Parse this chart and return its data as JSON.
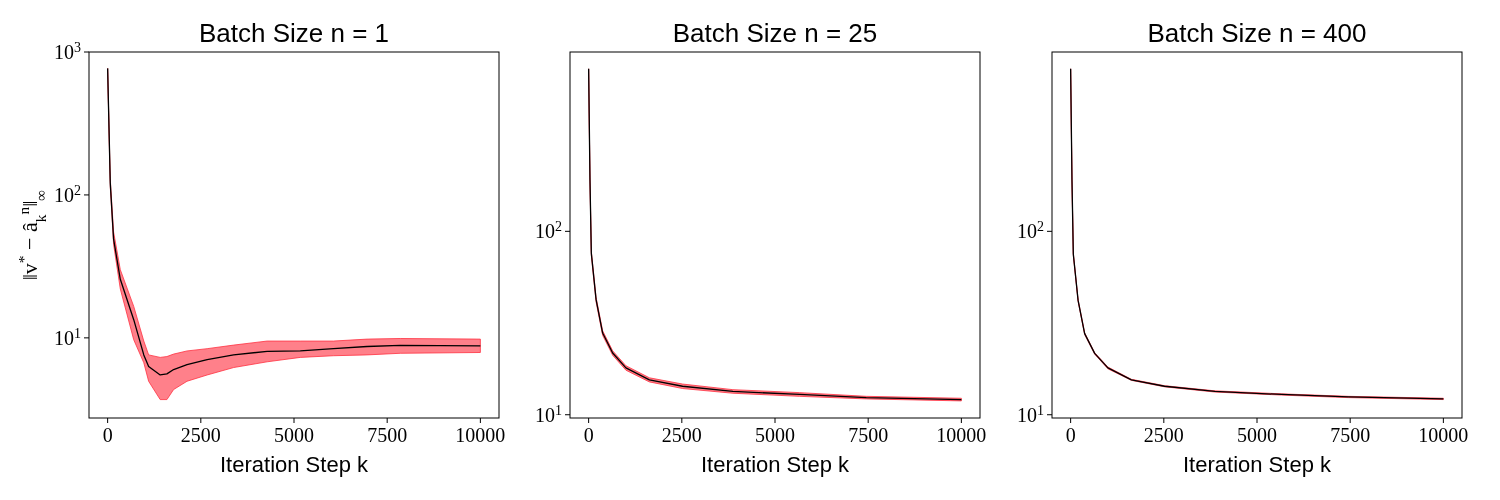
{
  "chart_data": [
    {
      "type": "line",
      "title": "Batch Size n = 1",
      "xlabel": "Iteration Step k",
      "ylabel": "‖v$^{*}$ − â$_{k}$$^{n}$‖$_{∞}$",
      "log": "y",
      "x": [
        0,
        70,
        160,
        340,
        700,
        970,
        1100,
        1410,
        1590,
        1770,
        2130,
        2670,
        3380,
        4280,
        5170,
        6060,
        6960,
        7850,
        10000
      ],
      "series": [
        {
          "color": "#000000",
          "values": [
            768,
            122,
            49,
            25.7,
            13.4,
            7.6,
            6.3,
            5.5,
            5.6,
            6.0,
            6.5,
            7.05,
            7.6,
            8.05,
            8.1,
            8.4,
            8.7,
            8.85,
            8.8
          ],
          "lower": [
            768,
            115,
            45,
            22,
            9.7,
            6.7,
            4.97,
            3.7,
            3.7,
            4.35,
            4.97,
            5.5,
            6.2,
            6.8,
            7.3,
            7.5,
            7.6,
            7.8,
            7.9
          ],
          "upper": [
            768,
            130,
            55,
            30,
            16.6,
            9.5,
            7.6,
            7.3,
            7.4,
            7.7,
            8.1,
            8.4,
            8.9,
            9.5,
            9.5,
            9.5,
            9.8,
            9.9,
            9.8
          ]
        }
      ],
      "xlim": [
        -500,
        10500
      ],
      "xticks": [
        0,
        2500,
        5000,
        7500,
        10000
      ],
      "ylim": [
        2.75,
        1000
      ],
      "yticks": [
        {
          "value": 10,
          "label": "10$^{1}$"
        },
        {
          "value": 100,
          "label": "10$^{2}$"
        },
        {
          "value": 1000,
          "label": "10$^{3}$"
        }
      ]
    },
    {
      "type": "line",
      "title": "Batch Size n = 25",
      "xlabel": "Iteration Step k",
      "log": "y",
      "x": [
        0,
        36,
        72,
        200,
        376,
        645,
        1000,
        1630,
        2520,
        3870,
        5660,
        7450,
        10000
      ],
      "series": [
        {
          "color": "#000000",
          "values": [
            769,
            191,
            76,
            42.4,
            27.9,
            21.7,
            18,
            15.5,
            14.3,
            13.4,
            12.9,
            12.4,
            12.1
          ],
          "lower": [
            769,
            186,
            74,
            41.2,
            27.1,
            21.1,
            17.5,
            15.1,
            13.9,
            13.1,
            12.6,
            12.2,
            11.9
          ],
          "upper": [
            769,
            196,
            78,
            43.6,
            28.7,
            22.3,
            18.5,
            15.9,
            14.7,
            13.7,
            13.2,
            12.6,
            12.3
          ]
        }
      ],
      "xlim": [
        -500,
        10500
      ],
      "xticks": [
        0,
        2500,
        5000,
        7500,
        10000
      ],
      "ylim": [
        9.6,
        950
      ],
      "yticks": [
        {
          "value": 10,
          "label": "10$^{1}$"
        },
        {
          "value": 100,
          "label": "10$^{2}$"
        }
      ]
    },
    {
      "type": "line",
      "title": "Batch Size n = 400",
      "xlabel": "Iteration Step k",
      "log": "y",
      "x": [
        0,
        36,
        72,
        200,
        376,
        645,
        1000,
        1630,
        2520,
        3870,
        5660,
        7450,
        10000
      ],
      "series": [
        {
          "color": "#000000",
          "values": [
            769,
            190,
            75,
            42,
            27.7,
            21.6,
            18,
            15.5,
            14.3,
            13.4,
            12.9,
            12.5,
            12.2
          ],
          "lower": [
            769,
            188,
            74,
            41.6,
            27.4,
            21.4,
            17.8,
            15.4,
            14.2,
            13.3,
            12.8,
            12.4,
            12.1
          ],
          "upper": [
            769,
            192,
            76,
            42.4,
            28,
            21.8,
            18.2,
            15.6,
            14.4,
            13.5,
            13.0,
            12.6,
            12.3
          ]
        }
      ],
      "xlim": [
        -500,
        10500
      ],
      "xticks": [
        0,
        2500,
        5000,
        7500,
        10000
      ],
      "ylim": [
        9.6,
        950
      ],
      "yticks": [
        {
          "value": 10,
          "label": "10$^{1}$"
        },
        {
          "value": 100,
          "label": "10$^{2}$"
        }
      ]
    }
  ]
}
